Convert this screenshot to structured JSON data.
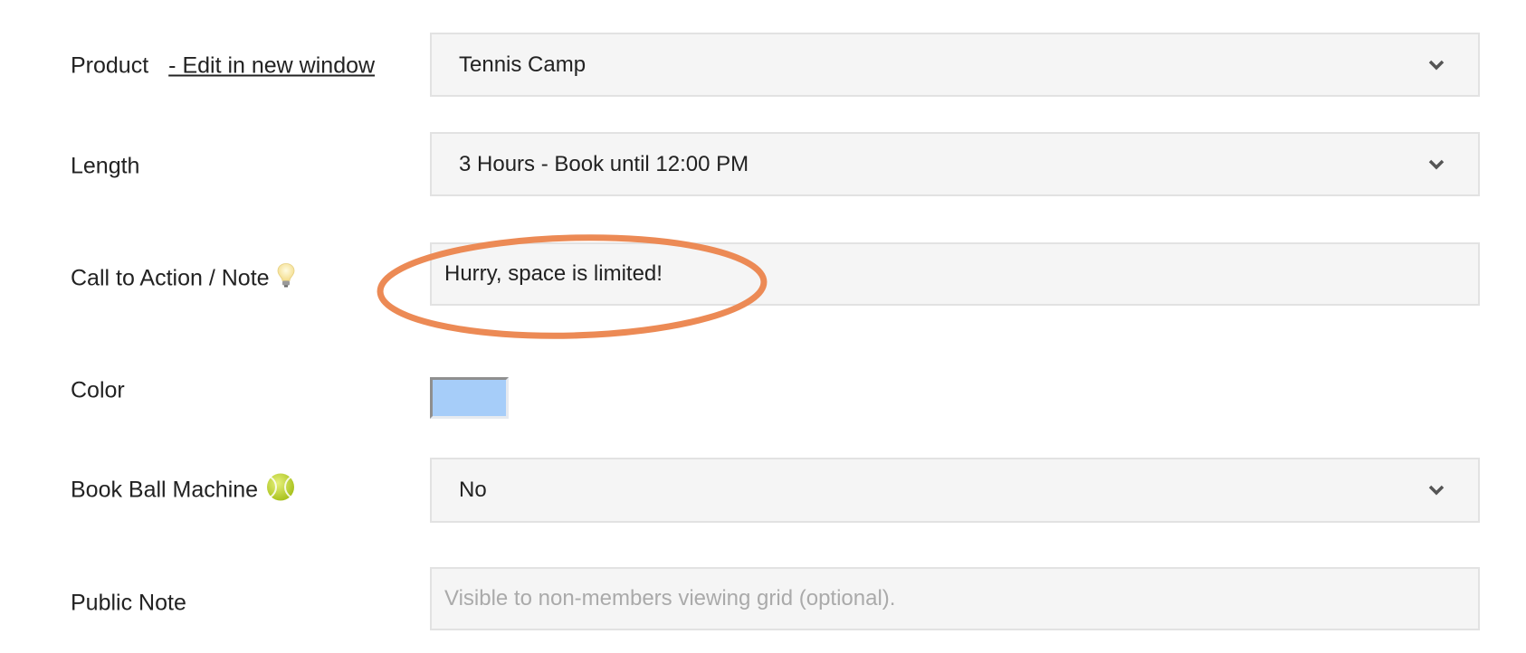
{
  "form": {
    "product": {
      "label": "Product",
      "edit_link": "- Edit in new window",
      "value": "Tennis Camp"
    },
    "length": {
      "label": "Length",
      "value": "3 Hours - Book until 12:00 PM"
    },
    "call_to_action": {
      "label": "Call to Action / Note",
      "icon": "lightbulb-icon",
      "value": "Hurry, space is limited!"
    },
    "color": {
      "label": "Color",
      "value": "#a6cdf9"
    },
    "ball_machine": {
      "label": "Book Ball Machine",
      "icon": "tennis-ball-icon",
      "value": "No"
    },
    "public_note": {
      "label": "Public Note",
      "placeholder": "Visible to non-members viewing grid (optional)."
    }
  },
  "annotation": {
    "highlight_color": "#ec8a55"
  }
}
